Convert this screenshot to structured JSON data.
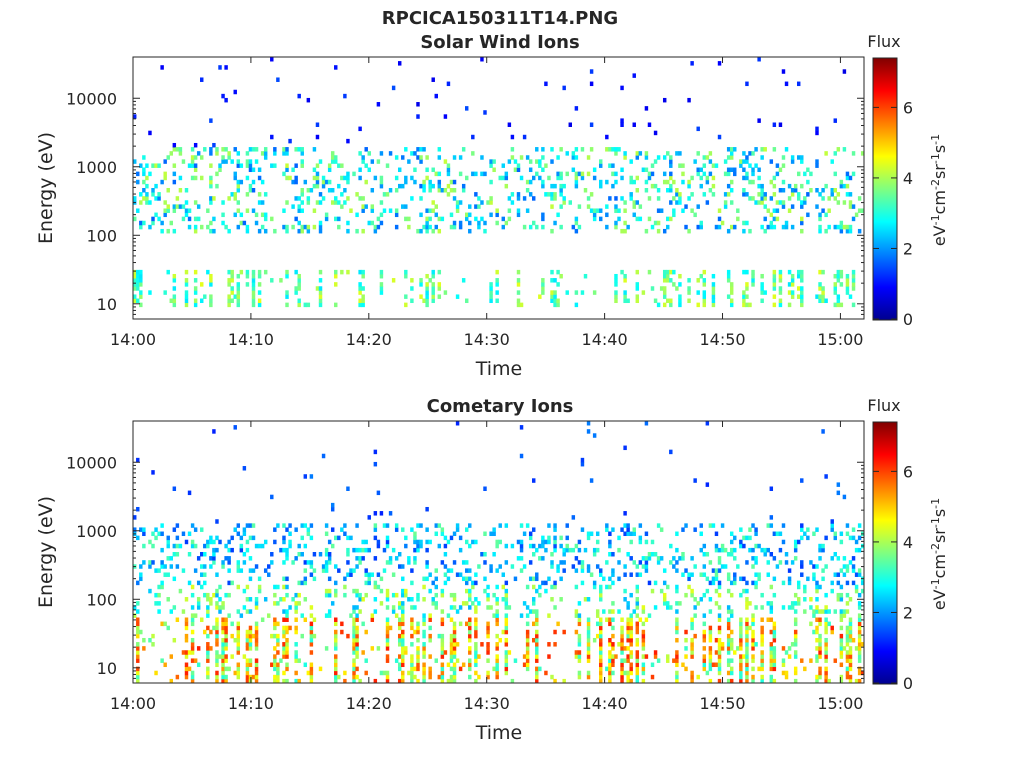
{
  "figure": {
    "title": "RPCICA150311T14.PNG"
  },
  "chart_data": [
    {
      "type": "heatmap",
      "title": "Solar Wind Ions",
      "xlabel": "Time",
      "ylabel": "Energy (eV)",
      "xticks": [
        "14:00",
        "14:10",
        "14:20",
        "14:30",
        "14:40",
        "14:50",
        "15:00"
      ],
      "xlim": [
        "14:00",
        "15:02"
      ],
      "yscale": "log",
      "yticks": [
        10,
        100,
        1000,
        10000
      ],
      "ylim": [
        6,
        40000
      ],
      "colorbar": {
        "label": "Flux",
        "unit_label": "eV-1cm-2sr-1s-1",
        "ticks": [
          0,
          2,
          4,
          6
        ],
        "range": [
          0,
          7.4
        ],
        "colormap": "jet"
      },
      "description_of_data": "Sparse flux blocks mainly between 100 and 1000 eV and a band near 10-30 eV; isolated points up to ~30000 eV"
    },
    {
      "type": "heatmap",
      "title": "Cometary Ions",
      "xlabel": "Time",
      "ylabel": "Energy (eV)",
      "xticks": [
        "14:00",
        "14:10",
        "14:20",
        "14:30",
        "14:40",
        "14:50",
        "15:00"
      ],
      "xlim": [
        "14:00",
        "15:02"
      ],
      "yscale": "log",
      "yticks": [
        10,
        100,
        1000,
        10000
      ],
      "ylim": [
        6,
        40000
      ],
      "colorbar": {
        "label": "Flux",
        "unit_label": "eV-1cm-2sr-1s-1",
        "ticks": [
          0,
          2,
          4,
          6
        ],
        "range": [
          0,
          7.4
        ],
        "colormap": "jet"
      },
      "description_of_data": "Intense flux below 50 eV with vertical streaks up to ~1000 eV; isolated points up to ~10000 eV"
    }
  ]
}
